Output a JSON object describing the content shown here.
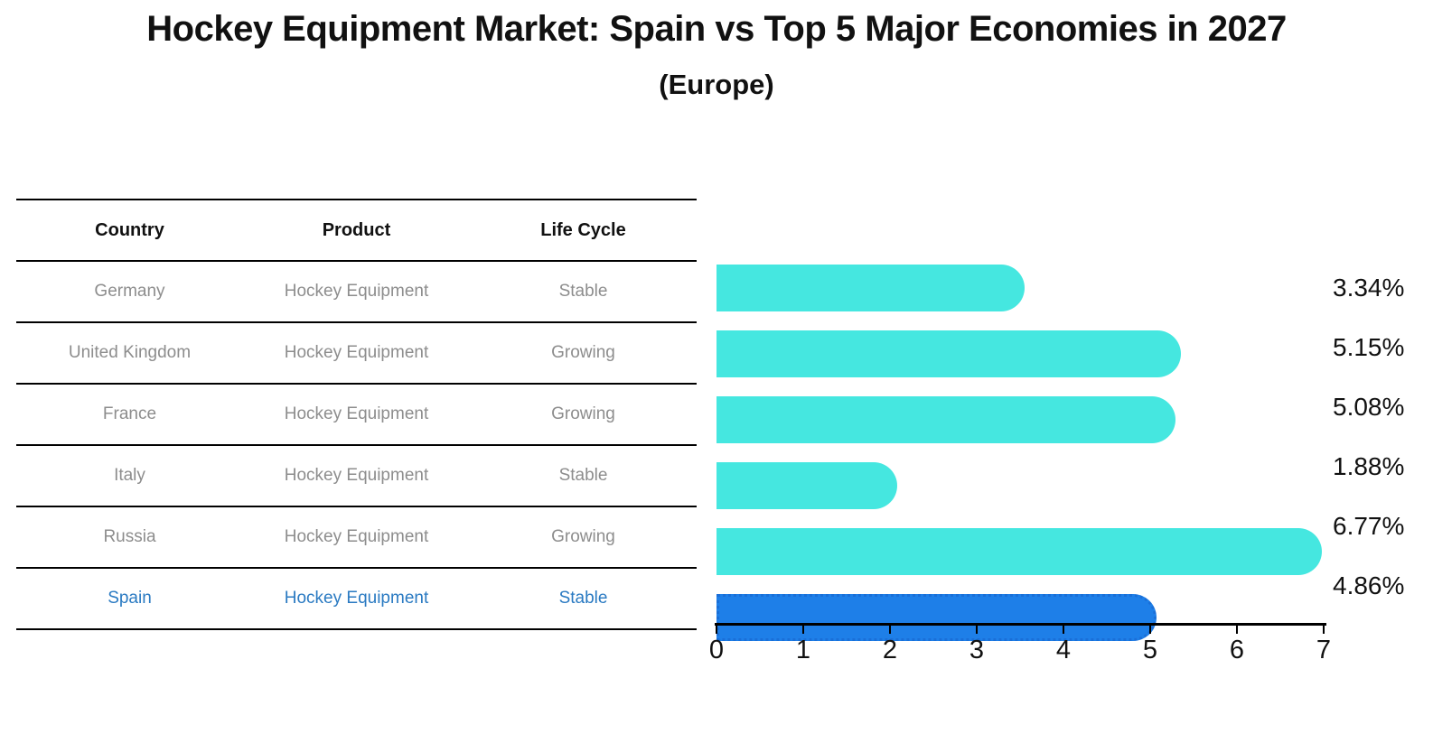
{
  "title": "Hockey Equipment Market: Spain vs Top 5 Major Economies in 2027",
  "subtitle": "(Europe)",
  "table": {
    "headers": [
      "Country",
      "Product",
      "Life Cycle"
    ],
    "rows": [
      {
        "country": "Germany",
        "product": "Hockey Equipment",
        "life_cycle": "Stable",
        "highlight": false
      },
      {
        "country": "United Kingdom",
        "product": "Hockey Equipment",
        "life_cycle": "Growing",
        "highlight": false
      },
      {
        "country": "France",
        "product": "Hockey Equipment",
        "life_cycle": "Growing",
        "highlight": false
      },
      {
        "country": "Italy",
        "product": "Hockey Equipment",
        "life_cycle": "Stable",
        "highlight": false
      },
      {
        "country": "Russia",
        "product": "Hockey Equipment",
        "life_cycle": "Growing",
        "highlight": false
      },
      {
        "country": "Spain",
        "product": "Hockey Equipment",
        "life_cycle": "Stable",
        "highlight": true
      }
    ]
  },
  "chart_data": {
    "type": "bar",
    "orientation": "horizontal",
    "title": "Hockey Equipment Market: Spain vs Top 5 Major Economies in 2027",
    "subtitle": "(Europe)",
    "categories": [
      "Germany",
      "United Kingdom",
      "France",
      "Italy",
      "Russia",
      "Spain"
    ],
    "values": [
      3.34,
      5.15,
      5.08,
      1.88,
      6.77,
      4.86
    ],
    "value_labels": [
      "3.34%",
      "5.15%",
      "5.08%",
      "1.88%",
      "6.77%",
      "4.86%"
    ],
    "xlim": [
      0,
      7
    ],
    "x_ticks": [
      0,
      1,
      2,
      3,
      4,
      5,
      6,
      7
    ],
    "grid": false,
    "legend": false,
    "highlight_index": 5,
    "bar_color": "#45E7E0",
    "highlight_bar_color": "#1E7FE8",
    "highlight_border_color": "#1A6FD8"
  },
  "colors": {
    "background": "#FFFFFF",
    "text": "#111111",
    "muted_text": "#8D8D8D",
    "highlight_text": "#2A7AC2",
    "line": "#000000"
  }
}
